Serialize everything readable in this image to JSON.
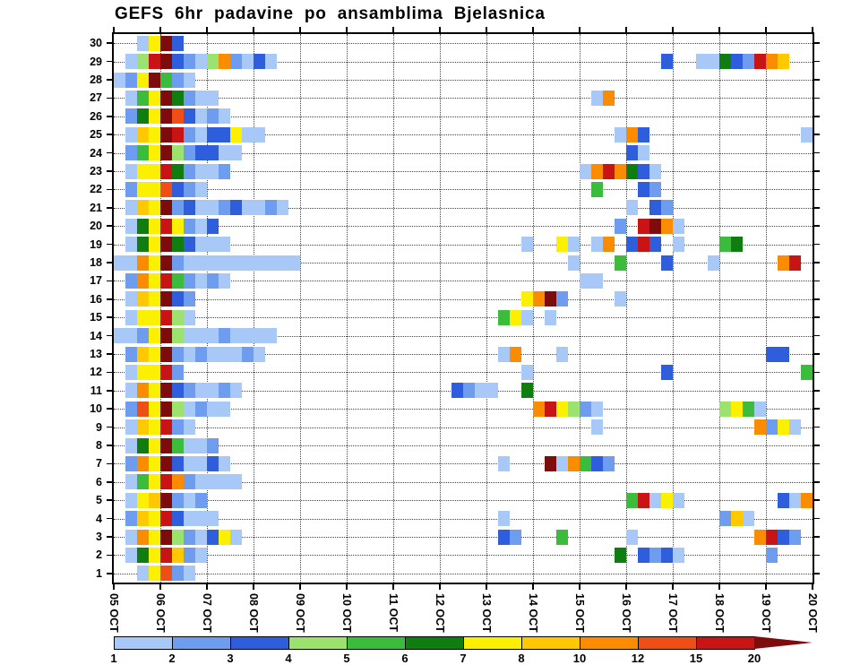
{
  "chart_data": {
    "type": "heatmap",
    "title": "GEFS 6hr padavine po ansamblima Bjelasnica",
    "x": {
      "tick_labels": [
        "05 OCT",
        "06 OCT",
        "07 OCT",
        "08 OCT",
        "09 OCT",
        "10 OCT",
        "11 OCT",
        "12 OCT",
        "13 OCT",
        "14 OCT",
        "15 OCT",
        "16 OCT",
        "17 OCT",
        "18 OCT",
        "19 OCT",
        "20 OCT"
      ],
      "steps_per_day": 4,
      "total_steps": 60
    },
    "y": {
      "tick_labels": [
        1,
        2,
        3,
        4,
        5,
        6,
        7,
        8,
        9,
        10,
        11,
        12,
        13,
        14,
        15,
        16,
        17,
        18,
        19,
        20,
        21,
        22,
        23,
        24,
        25,
        26,
        27,
        28,
        29,
        30
      ]
    },
    "levels": [
      1,
      2,
      3,
      4,
      5,
      6,
      7,
      8,
      10,
      12,
      15,
      20
    ],
    "bin_labels": [
      "1-2",
      "2-3",
      "3-4",
      "4-5",
      "5-6",
      "6-7",
      "7-8",
      "8-10",
      "10-12",
      "12-15",
      "15-20",
      "20+"
    ],
    "palette": {
      "1": "#A8C8F8",
      "2": "#6E9CEF",
      "3": "#2E5EDC",
      "4": "#9BE36E",
      "5": "#3CBC3C",
      "6": "#0F7D0F",
      "7": "#FBF000",
      "8": "#FFC800",
      "9": "#FB8C00",
      "A": "#EF4E16",
      "B": "#C81414",
      "C": "#7E0C0C"
    },
    "grid_color": "#444",
    "encoding": "rows: per ensemble member; runs = [startColumn, colorKeys]; key 0 = no precipitation; keys 1-9,A,B,C map to palette bins",
    "rows": [
      {
        "member": 1,
        "runs": [
          [
            2,
            "17A21"
          ]
        ]
      },
      {
        "member": 2,
        "runs": [
          [
            1,
            "167B821"
          ],
          [
            43,
            "6"
          ],
          [
            45,
            "3231"
          ],
          [
            56,
            "2"
          ]
        ]
      },
      {
        "member": 3,
        "runs": [
          [
            1,
            "197C421371"
          ],
          [
            33,
            "32"
          ],
          [
            38,
            "5"
          ],
          [
            44,
            "1"
          ],
          [
            55,
            "9B32"
          ]
        ]
      },
      {
        "member": 4,
        "runs": [
          [
            1,
            "287B3111"
          ],
          [
            33,
            "1"
          ],
          [
            52,
            "281"
          ]
        ]
      },
      {
        "member": 5,
        "runs": [
          [
            1,
            "178C212"
          ],
          [
            44,
            "5B171"
          ],
          [
            57,
            "319"
          ]
        ]
      },
      {
        "member": 6,
        "runs": [
          [
            1,
            "157B921111"
          ]
        ]
      },
      {
        "member": 7,
        "runs": [
          [
            1,
            "297C31131"
          ],
          [
            33,
            "1"
          ],
          [
            37,
            "C19532"
          ]
        ]
      },
      {
        "member": 8,
        "runs": [
          [
            1,
            "167C5112"
          ]
        ]
      },
      {
        "member": 9,
        "runs": [
          [
            1,
            "187B21"
          ],
          [
            41,
            "1"
          ],
          [
            55,
            "9271"
          ]
        ]
      },
      {
        "member": 10,
        "runs": [
          [
            1,
            "2A7C41211"
          ],
          [
            36,
            "9B7421"
          ],
          [
            52,
            "4751"
          ]
        ]
      },
      {
        "member": 11,
        "runs": [
          [
            1,
            "197C321121"
          ],
          [
            29,
            "3211"
          ],
          [
            35,
            "6"
          ]
        ]
      },
      {
        "member": 12,
        "runs": [
          [
            1,
            "177B2"
          ],
          [
            35,
            "1"
          ],
          [
            47,
            "3"
          ],
          [
            59,
            "5"
          ]
        ]
      },
      {
        "member": 13,
        "runs": [
          [
            1,
            "287C21211121"
          ],
          [
            33,
            "19"
          ],
          [
            38,
            "1"
          ],
          [
            56,
            "33"
          ]
        ]
      },
      {
        "member": 14,
        "runs": [
          [
            0,
            "1127C411121111"
          ]
        ]
      },
      {
        "member": 15,
        "runs": [
          [
            1,
            "177B41"
          ],
          [
            33,
            "571"
          ],
          [
            37,
            "1"
          ]
        ]
      },
      {
        "member": 16,
        "runs": [
          [
            1,
            "187C32"
          ],
          [
            35,
            "79C2"
          ],
          [
            43,
            "1"
          ]
        ]
      },
      {
        "member": 17,
        "runs": [
          [
            1,
            "297B52121"
          ],
          [
            40,
            "11"
          ]
        ]
      },
      {
        "member": 18,
        "runs": [
          [
            0,
            "1197C21111111111"
          ],
          [
            39,
            "1"
          ],
          [
            43,
            "5"
          ],
          [
            47,
            "3"
          ],
          [
            51,
            "1"
          ],
          [
            57,
            "9B"
          ]
        ]
      },
      {
        "member": 19,
        "runs": [
          [
            1,
            "167C63111"
          ],
          [
            35,
            "1"
          ],
          [
            38,
            "71"
          ],
          [
            41,
            "19"
          ],
          [
            44,
            "3B3"
          ],
          [
            48,
            "1"
          ],
          [
            52,
            "56"
          ]
        ]
      },
      {
        "member": 20,
        "runs": [
          [
            1,
            "167B7213"
          ],
          [
            43,
            "2"
          ],
          [
            45,
            "BC91"
          ]
        ]
      },
      {
        "member": 21,
        "runs": [
          [
            1,
            "187C2311231121"
          ],
          [
            44,
            "1"
          ],
          [
            46,
            "32"
          ]
        ]
      },
      {
        "member": 22,
        "runs": [
          [
            1,
            "277A321"
          ],
          [
            41,
            "5"
          ],
          [
            45,
            "32"
          ]
        ]
      },
      {
        "member": 23,
        "runs": [
          [
            1,
            "177B62112"
          ],
          [
            40,
            "19B9631"
          ]
        ]
      },
      {
        "member": 24,
        "runs": [
          [
            1,
            "257C423311"
          ],
          [
            44,
            "31"
          ]
        ]
      },
      {
        "member": 25,
        "runs": [
          [
            1,
            "187CB2133711"
          ],
          [
            43,
            "193"
          ],
          [
            59,
            "1"
          ]
        ]
      },
      {
        "member": 26,
        "runs": [
          [
            1,
            "267CA3121"
          ]
        ]
      },
      {
        "member": 27,
        "runs": [
          [
            1,
            "157C6211"
          ],
          [
            41,
            "19"
          ]
        ]
      },
      {
        "member": 28,
        "runs": [
          [
            0,
            "127C521"
          ]
        ]
      },
      {
        "member": 29,
        "runs": [
          [
            1,
            "14BC321492131"
          ],
          [
            47,
            "3"
          ],
          [
            50,
            "11632B98"
          ]
        ]
      },
      {
        "member": 30,
        "runs": [
          [
            2,
            "17C3"
          ]
        ]
      }
    ]
  }
}
